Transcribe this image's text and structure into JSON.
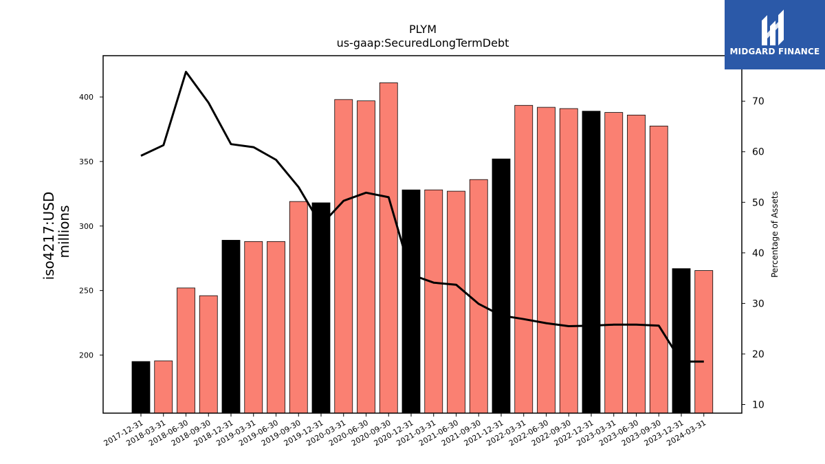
{
  "brand": {
    "name": "MIDGARD FINANCE",
    "logo_icon": "midgard-logo-icon",
    "bg": "#2b59a8"
  },
  "chart_data": {
    "type": "bar",
    "title": "PLYM",
    "subtitle": "us-gaap:SecuredLongTermDebt",
    "ylabel_line1": "iso4217:USD",
    "ylabel_line2": "millions",
    "y2label": "Percentage of Assets",
    "ylim": [
      155,
      432
    ],
    "y2lim": [
      8.3,
      79
    ],
    "yticks": [
      200,
      250,
      300,
      350,
      400
    ],
    "y2ticks": [
      10,
      20,
      30,
      40,
      50,
      60,
      70
    ],
    "categories": [
      "2017-12-31",
      "2018-03-31",
      "2018-06-30",
      "2018-09-30",
      "2018-12-31",
      "2019-03-31",
      "2019-06-30",
      "2019-09-30",
      "2019-12-31",
      "2020-03-31",
      "2020-06-30",
      "2020-09-30",
      "2020-12-31",
      "2021-03-31",
      "2021-06-30",
      "2021-09-30",
      "2021-12-31",
      "2022-03-31",
      "2022-06-30",
      "2022-09-30",
      "2022-12-31",
      "2023-03-31",
      "2023-06-30",
      "2023-09-30",
      "2023-12-31",
      "2024-03-31"
    ],
    "values": [
      195,
      195.5,
      252,
      246,
      289,
      288,
      288,
      319,
      318,
      398,
      397,
      411,
      328,
      328,
      327,
      336,
      352,
      393.5,
      392,
      391,
      389,
      388,
      386,
      377.5,
      267,
      265.5
    ],
    "bar_colors": [
      "#000000",
      "#fa8072",
      "#fa8072",
      "#fa8072",
      "#000000",
      "#fa8072",
      "#fa8072",
      "#fa8072",
      "#000000",
      "#fa8072",
      "#fa8072",
      "#fa8072",
      "#000000",
      "#fa8072",
      "#fa8072",
      "#fa8072",
      "#000000",
      "#fa8072",
      "#fa8072",
      "#fa8072",
      "#000000",
      "#fa8072",
      "#fa8072",
      "#fa8072",
      "#000000",
      "#fa8072"
    ],
    "line_series": {
      "values": [
        59.2,
        61.3,
        75.8,
        69.7,
        61.5,
        60.9,
        58.4,
        53,
        45.5,
        50.3,
        51.9,
        51,
        35.7,
        34.1,
        33.7,
        29.9,
        27.6,
        26.9,
        26.1,
        25.5,
        25.6,
        25.8,
        25.8,
        25.6,
        18.5,
        18.5
      ],
      "color": "#000000"
    },
    "grid": false,
    "legend": "none"
  }
}
